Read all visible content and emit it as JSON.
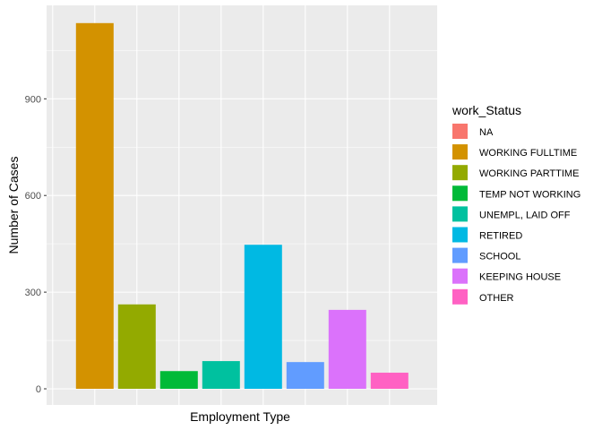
{
  "chart_data": {
    "type": "bar",
    "xlabel": "Employment Type",
    "ylabel": "Number of Cases",
    "ylim": [
      -50,
      1190
    ],
    "y_ticks": [
      0,
      300,
      600,
      900
    ],
    "grid": true,
    "legend": {
      "title": "work_Status",
      "position": "right"
    },
    "categories": [
      "NA",
      "WORKING FULLTIME",
      "WORKING PARTTIME",
      "TEMP NOT WORKING",
      "UNEMPL, LAID OFF",
      "RETIRED",
      "SCHOOL",
      "KEEPING HOUSE",
      "OTHER"
    ],
    "values": [
      0,
      1135,
      262,
      55,
      86,
      447,
      83,
      245,
      50
    ],
    "colors": [
      "#F8766D",
      "#D39200",
      "#93AA00",
      "#00BA38",
      "#00C19F",
      "#00B9E3",
      "#619CFF",
      "#DB72FB",
      "#FF61C3"
    ]
  }
}
